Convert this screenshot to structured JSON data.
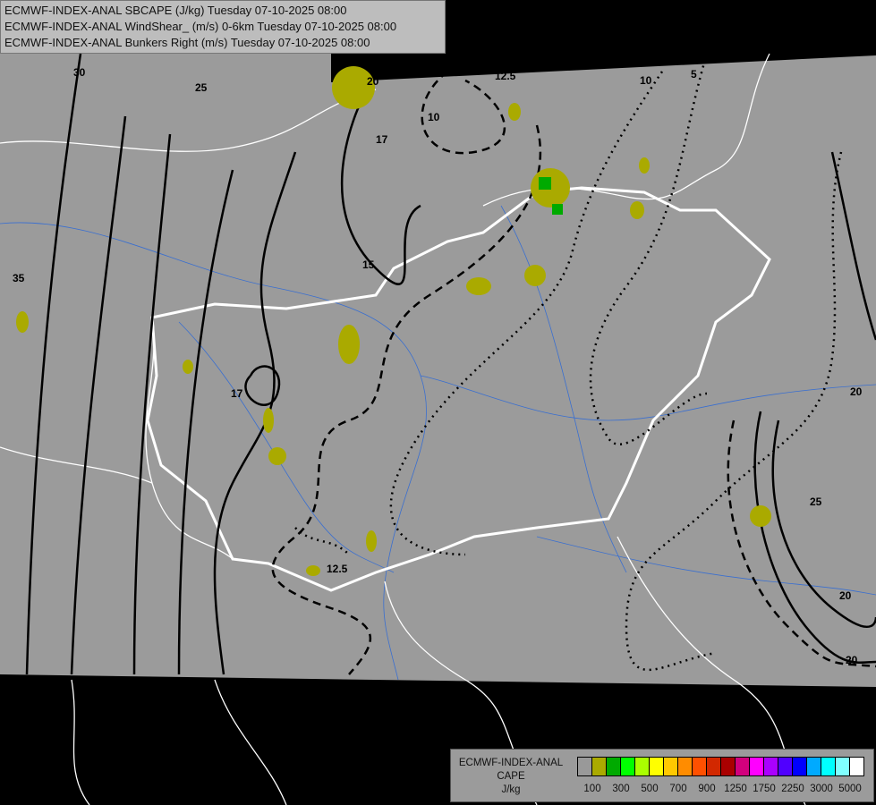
{
  "header": {
    "lines": [
      "ECMWF-INDEX-ANAL SBCAPE (J/kg) Tuesday 07-10-2025 08:00",
      "ECMWF-INDEX-ANAL WindShear_ (m/s) 0-6km Tuesday 07-10-2025 08:00",
      "ECMWF-INDEX-ANAL Bunkers Right (m/s) Tuesday 07-10-2025 08:00"
    ]
  },
  "legend": {
    "title_line1": "ECMWF-INDEX-ANAL",
    "title_line2": "CAPE",
    "units": "J/kg",
    "colors": [
      "#999999",
      "#aaaa00",
      "#00aa00",
      "#00ff00",
      "#aaff00",
      "#ffff00",
      "#ffc800",
      "#ff8c00",
      "#ff5000",
      "#d22800",
      "#aa0000",
      "#d2007d",
      "#ff00ff",
      "#aa00ff",
      "#5000ff",
      "#0000ff",
      "#00aaff",
      "#00ffff",
      "#80ffff",
      "#ffffff"
    ],
    "tick_labels": [
      "100",
      "300",
      "500",
      "700",
      "900",
      "1250",
      "1750",
      "2250",
      "3000",
      "5000"
    ]
  },
  "map": {
    "domain_color": "#9b9b9b",
    "outside_color": "#000000",
    "border_color": "#ffffff",
    "river_color": "#3a6fd0",
    "cape_color": "#aaaa00",
    "cape_high_color": "#00aa00",
    "contour_labels": {
      "c30": "30",
      "c25a": "25",
      "c35": "35",
      "c20a": "20",
      "c17a": "17",
      "c15a": "15",
      "c12a": "12.5",
      "c10a": "10",
      "c5": "5",
      "c17b": "17",
      "c15b": "15",
      "c12b": "12.5",
      "c20b": "20",
      "c25b": "25",
      "c20c": "20",
      "c20d": "20",
      "c10b": "10"
    }
  }
}
